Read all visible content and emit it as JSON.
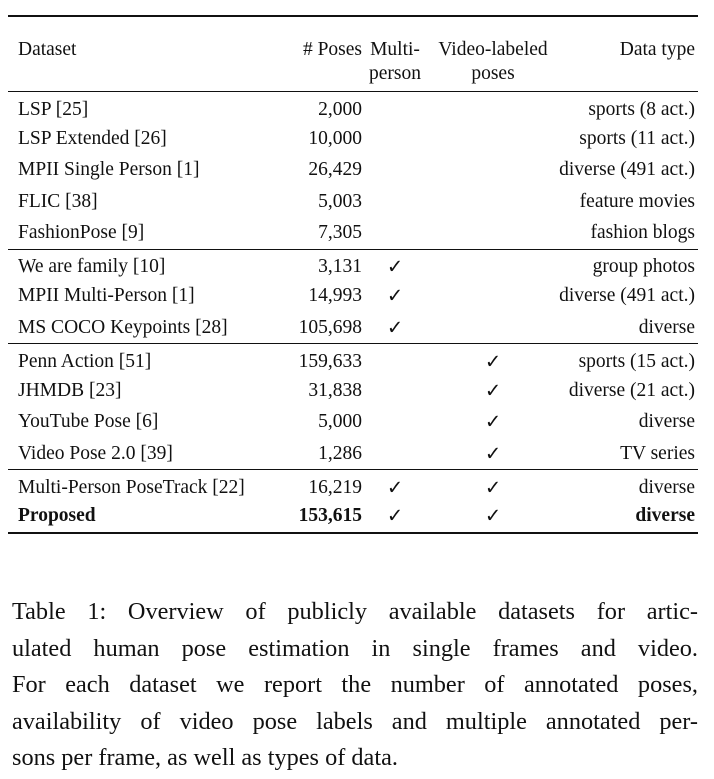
{
  "table": {
    "headers": [
      {
        "line1": "Dataset",
        "line2": ""
      },
      {
        "line1": "# Poses",
        "line2": ""
      },
      {
        "line1": "Multi-",
        "line2": "person"
      },
      {
        "line1": "Video-labeled",
        "line2": "poses"
      },
      {
        "line1": "Data type",
        "line2": ""
      }
    ],
    "check_mark": "✓",
    "groups": [
      [
        {
          "dataset": "LSP [25]",
          "poses": "2,000",
          "multi_person": false,
          "video_labeled": false,
          "data_type": "sports (8 act.)"
        },
        {
          "dataset": "LSP Extended [26]",
          "poses": "10,000",
          "multi_person": false,
          "video_labeled": false,
          "data_type": "sports (11 act.)"
        },
        {
          "dataset": "MPII Single Person [1]",
          "poses": "26,429",
          "multi_person": false,
          "video_labeled": false,
          "data_type": "diverse (491 act.)"
        },
        {
          "dataset": "FLIC [38]",
          "poses": "5,003",
          "multi_person": false,
          "video_labeled": false,
          "data_type": "feature movies"
        },
        {
          "dataset": "FashionPose [9]",
          "poses": "7,305",
          "multi_person": false,
          "video_labeled": false,
          "data_type": "fashion blogs"
        }
      ],
      [
        {
          "dataset": "We are family [10]",
          "poses": "3,131",
          "multi_person": true,
          "video_labeled": false,
          "data_type": "group photos"
        },
        {
          "dataset": "MPII Multi-Person [1]",
          "poses": "14,993",
          "multi_person": true,
          "video_labeled": false,
          "data_type": "diverse (491 act.)"
        },
        {
          "dataset": "MS COCO Keypoints [28]",
          "poses": "105,698",
          "multi_person": true,
          "video_labeled": false,
          "data_type": "diverse"
        }
      ],
      [
        {
          "dataset": "Penn Action [51]",
          "poses": "159,633",
          "multi_person": false,
          "video_labeled": true,
          "data_type": "sports (15 act.)"
        },
        {
          "dataset": "JHMDB [23]",
          "poses": "31,838",
          "multi_person": false,
          "video_labeled": true,
          "data_type": "diverse (21 act.)"
        },
        {
          "dataset": "YouTube Pose [6]",
          "poses": "5,000",
          "multi_person": false,
          "video_labeled": true,
          "data_type": "diverse"
        },
        {
          "dataset": "Video Pose 2.0 [39]",
          "poses": "1,286",
          "multi_person": false,
          "video_labeled": true,
          "data_type": "TV series"
        }
      ],
      [
        {
          "dataset": "Multi-Person PoseTrack [22]",
          "poses": "16,219",
          "multi_person": true,
          "video_labeled": true,
          "data_type": "diverse"
        },
        {
          "dataset": "Proposed",
          "poses": "153,615",
          "multi_person": true,
          "video_labeled": true,
          "data_type": "diverse",
          "bold": true
        }
      ]
    ]
  },
  "caption": {
    "lines": [
      "Table 1: Overview of publicly available datasets for artic-",
      "ulated human pose estimation in single frames and video.",
      "For each dataset we report the number of annotated poses,",
      "availability of video pose labels and multiple annotated per-",
      "sons per frame, as well as types of data."
    ]
  }
}
